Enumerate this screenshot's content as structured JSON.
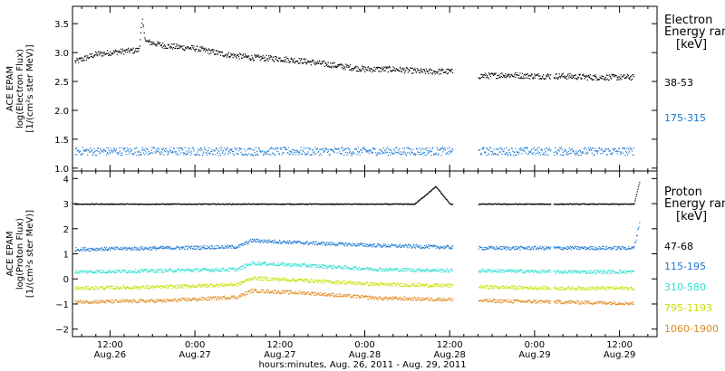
{
  "figure": {
    "xlabel": "hours:minutes, Aug. 26, 2011 - Aug. 29, 2011",
    "x_ticks": [
      {
        "hour": 12,
        "time": "12:00",
        "date": "Aug.26"
      },
      {
        "hour": 24,
        "time": "0:00",
        "date": "Aug.27"
      },
      {
        "hour": 36,
        "time": "12:00",
        "date": "Aug.27"
      },
      {
        "hour": 48,
        "time": "0:00",
        "date": "Aug.28"
      },
      {
        "hour": 60,
        "time": "12:00",
        "date": "Aug.28"
      },
      {
        "hour": 72,
        "time": "0:00",
        "date": "Aug.29"
      },
      {
        "hour": 84,
        "time": "12:00",
        "date": "Aug.29"
      }
    ],
    "x_minor_step_hours": 2,
    "xlim": [
      6.7,
      89.3
    ]
  },
  "chart_data": [
    {
      "type": "scatter",
      "panel": "electron",
      "ylabel_lines": [
        "ACE EPAM",
        "log(Electron Flux)",
        "[1/(cm²s ster MeV)]"
      ],
      "ylim": [
        0.95,
        3.8
      ],
      "y_ticks": [
        "1.0",
        "1.5",
        "2.0",
        "2.5",
        "3.0",
        "3.5"
      ],
      "y_tick_values": [
        1.0,
        1.5,
        2.0,
        2.5,
        3.0,
        3.5
      ],
      "legend_title": [
        "Electron",
        "Energy ran",
        "[keV]"
      ],
      "data_gap_hours": [
        60.4,
        64.0
      ],
      "series": [
        {
          "name": "38-53",
          "color": "#000000",
          "x": [
            7,
            10,
            13,
            16,
            16.5,
            17,
            20,
            24,
            28,
            32,
            36,
            40,
            44,
            48,
            52,
            56,
            60,
            64.2,
            68,
            72,
            76,
            80,
            84,
            86
          ],
          "y": [
            2.85,
            2.98,
            3.02,
            3.05,
            3.55,
            3.2,
            3.12,
            3.08,
            2.98,
            2.92,
            2.9,
            2.85,
            2.78,
            2.72,
            2.72,
            2.68,
            2.68,
            2.6,
            2.62,
            2.6,
            2.6,
            2.58,
            2.58,
            2.58
          ]
        },
        {
          "name": "175-315",
          "color": "#1c78d2",
          "x": [
            7,
            20,
            35,
            50,
            60,
            64.2,
            75,
            86
          ],
          "y": [
            1.3,
            1.3,
            1.3,
            1.3,
            1.3,
            1.3,
            1.3,
            1.3
          ]
        }
      ]
    },
    {
      "type": "scatter",
      "panel": "proton",
      "ylabel_lines": [
        "ACE EPAM",
        "log(Proton Flux)",
        "[1/(cm²s ster MeV)]"
      ],
      "ylim": [
        -2.3,
        4.3
      ],
      "y_ticks": [
        "−2",
        "−1",
        "0",
        "1",
        "2",
        "3",
        "4"
      ],
      "y_tick_values": [
        -2,
        -1,
        0,
        1,
        2,
        3,
        4
      ],
      "legend_title": [
        "Proton",
        "Energy ran",
        "[keV]"
      ],
      "data_gap_hours": [
        60.4,
        64.0
      ],
      "series": [
        {
          "name": "47-68",
          "color": "#000000",
          "x": [
            7,
            20,
            40,
            55,
            58,
            60,
            64.2,
            75,
            86,
            86.8
          ],
          "y": [
            3.0,
            3.0,
            3.0,
            3.0,
            3.7,
            3.0,
            3.0,
            3.0,
            3.0,
            3.9
          ]
        },
        {
          "name": "115-195",
          "color": "#1c78d2",
          "x": [
            7,
            20,
            30,
            32,
            40,
            50,
            60,
            64.2,
            75,
            86,
            86.8
          ],
          "y": [
            1.2,
            1.25,
            1.3,
            1.55,
            1.45,
            1.35,
            1.28,
            1.25,
            1.25,
            1.25,
            2.3
          ]
        },
        {
          "name": "310-580",
          "color": "#2ee0d0",
          "x": [
            7,
            20,
            30,
            32,
            40,
            50,
            60,
            64.2,
            75,
            86
          ],
          "y": [
            0.3,
            0.35,
            0.4,
            0.65,
            0.55,
            0.4,
            0.35,
            0.35,
            0.3,
            0.3
          ]
        },
        {
          "name": "795-1193",
          "color": "#c8e000",
          "x": [
            7,
            20,
            30,
            32,
            40,
            50,
            60,
            64.2,
            75,
            86
          ],
          "y": [
            -0.35,
            -0.3,
            -0.2,
            0.05,
            -0.05,
            -0.2,
            -0.25,
            -0.3,
            -0.35,
            -0.35
          ]
        },
        {
          "name": "1060-1900",
          "color": "#e08a1e",
          "x": [
            7,
            20,
            30,
            32,
            40,
            50,
            60,
            64.2,
            75,
            86
          ],
          "y": [
            -0.9,
            -0.85,
            -0.7,
            -0.45,
            -0.55,
            -0.75,
            -0.8,
            -0.85,
            -0.9,
            -0.95
          ]
        }
      ]
    }
  ]
}
